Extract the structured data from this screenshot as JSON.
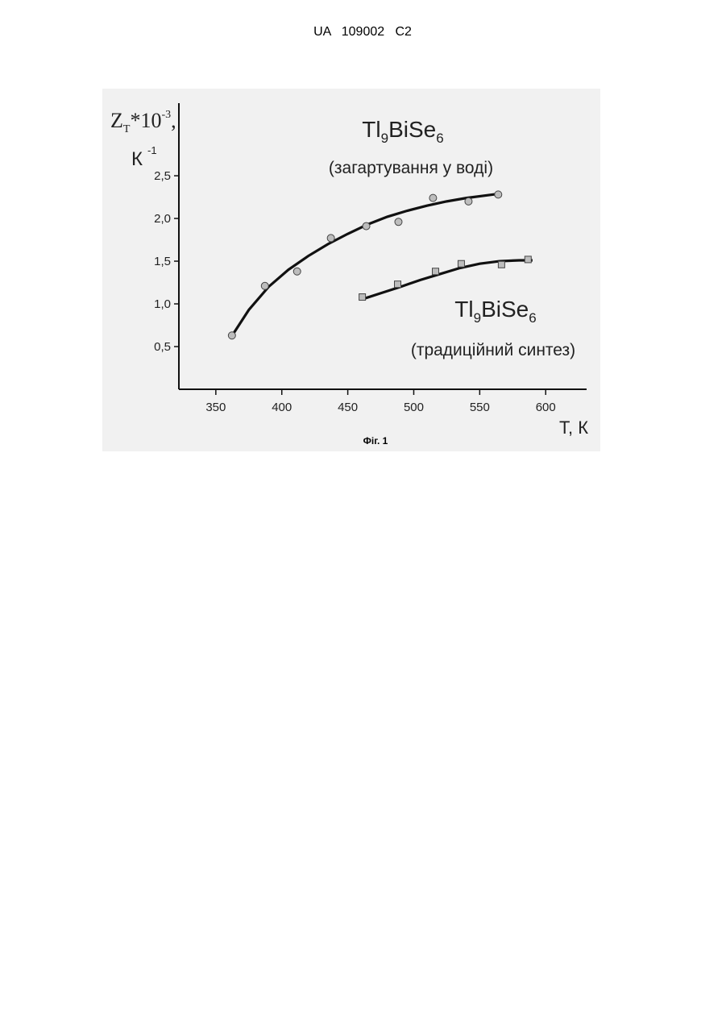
{
  "header": {
    "title": "UA   109002   C2"
  },
  "chart_data": {
    "type": "scatter",
    "y_label": [
      "Z",
      "T",
      "*10",
      "-3",
      ",",
      "К",
      "-1"
    ],
    "x_label": "T, К",
    "xlim": [
      322,
      631
    ],
    "xticks": [
      350,
      400,
      450,
      500,
      550,
      600
    ],
    "ylim": [
      0,
      3.35
    ],
    "yticks": [
      {
        "value": 0.5,
        "label": "0,5"
      },
      {
        "value": 1.0,
        "label": "1,0"
      },
      {
        "value": 1.5,
        "label": "1,5"
      },
      {
        "value": 2.0,
        "label": "2,0"
      },
      {
        "value": 2.5,
        "label": "2,5"
      }
    ],
    "series": [
      {
        "name": "Tl9BiSe6",
        "note": "(загартування у воді)",
        "marker": "circle",
        "color": "#bdbdbd",
        "x": [
          362.2,
          387.2,
          411.6,
          437.2,
          464.0,
          488.4,
          514.6,
          541.5,
          564.0
        ],
        "values": [
          0.63,
          1.21,
          1.38,
          1.77,
          1.91,
          1.96,
          2.24,
          2.2,
          2.28
        ],
        "fit_x": [
          362,
          375,
          390,
          405,
          420,
          435,
          450,
          465,
          480,
          495,
          510,
          525,
          540,
          555,
          565
        ],
        "fit_y": [
          0.62,
          0.93,
          1.2,
          1.4,
          1.56,
          1.7,
          1.82,
          1.93,
          2.02,
          2.09,
          2.15,
          2.2,
          2.24,
          2.27,
          2.29
        ]
      },
      {
        "name": "Tl9BiSe6",
        "note": "(традиційний синтез)",
        "marker": "square",
        "color": "#bdbdbd",
        "x": [
          461.0,
          487.8,
          516.5,
          536.0,
          566.5,
          586.6
        ],
        "values": [
          1.08,
          1.23,
          1.38,
          1.47,
          1.46,
          1.52
        ],
        "fit_x": [
          462,
          476,
          490,
          505,
          520,
          535,
          550,
          565,
          580,
          590
        ],
        "fit_y": [
          1.06,
          1.13,
          1.2,
          1.28,
          1.35,
          1.42,
          1.47,
          1.5,
          1.51,
          1.51
        ]
      }
    ]
  },
  "caption": "Фіг. 1"
}
